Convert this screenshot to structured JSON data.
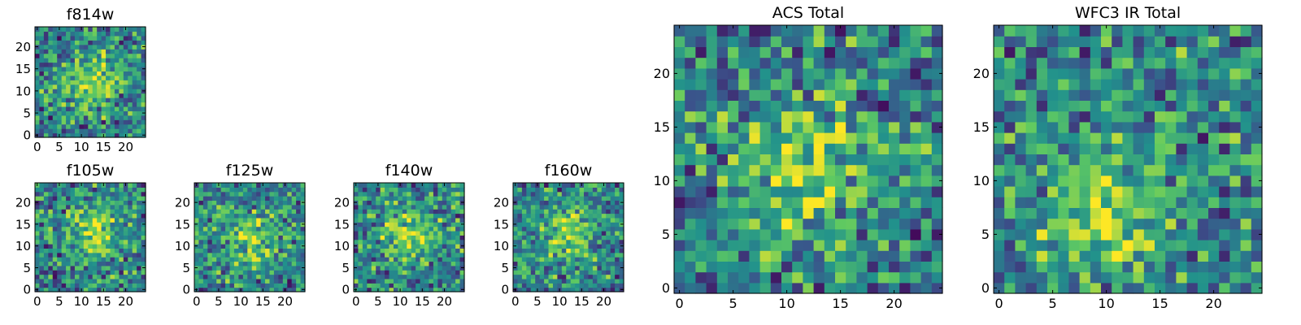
{
  "figure": {
    "colormap": "viridis",
    "colormap_stops": [
      "#440154",
      "#3b528b",
      "#21918c",
      "#5ec962",
      "#fde725"
    ]
  },
  "chart_data": [
    {
      "type": "heatmap",
      "id": "f814w",
      "title": "f814w",
      "size": 25,
      "xticks": [
        0,
        5,
        10,
        15,
        20
      ],
      "yticks": [
        0,
        5,
        10,
        15,
        20
      ],
      "xlim": [
        -0.5,
        24.5
      ],
      "ylim": [
        -0.5,
        24.5
      ],
      "peak": [
        12,
        12
      ],
      "noise_seed": 11
    },
    {
      "type": "heatmap",
      "id": "f105w",
      "title": "f105w",
      "size": 25,
      "xticks": [
        0,
        5,
        10,
        15,
        20
      ],
      "yticks": [
        0,
        5,
        10,
        15,
        20
      ],
      "xlim": [
        -0.5,
        24.5
      ],
      "ylim": [
        -0.5,
        24.5
      ],
      "peak": [
        13,
        13
      ],
      "noise_seed": 23
    },
    {
      "type": "heatmap",
      "id": "f125w",
      "title": "f125w",
      "size": 25,
      "xticks": [
        0,
        5,
        10,
        15,
        20
      ],
      "yticks": [
        0,
        5,
        10,
        15,
        20
      ],
      "xlim": [
        -0.5,
        24.5
      ],
      "ylim": [
        -0.5,
        24.5
      ],
      "peak": [
        12,
        12
      ],
      "noise_seed": 37
    },
    {
      "type": "heatmap",
      "id": "f140w",
      "title": "f140w",
      "size": 25,
      "xticks": [
        0,
        5,
        10,
        15,
        20
      ],
      "yticks": [
        0,
        5,
        10,
        15,
        20
      ],
      "xlim": [
        -0.5,
        24.5
      ],
      "ylim": [
        -0.5,
        24.5
      ],
      "peak": [
        12,
        13
      ],
      "noise_seed": 41
    },
    {
      "type": "heatmap",
      "id": "f160w",
      "title": "f160w",
      "size": 25,
      "xticks": [
        0,
        5,
        10,
        15,
        20
      ],
      "yticks": [
        0,
        5,
        10,
        15,
        20
      ],
      "xlim": [
        -0.5,
        24.5
      ],
      "ylim": [
        -0.5,
        24.5
      ],
      "peak": [
        12,
        13
      ],
      "noise_seed": 53
    },
    {
      "type": "heatmap",
      "id": "acs-total",
      "title": "ACS Total",
      "size": 25,
      "xticks": [
        0,
        5,
        10,
        15,
        20
      ],
      "yticks": [
        0,
        5,
        10,
        15,
        20
      ],
      "xlim": [
        -0.5,
        24.5
      ],
      "ylim": [
        -0.5,
        24.5
      ],
      "peak": [
        12,
        11
      ],
      "noise_seed": 67
    },
    {
      "type": "heatmap",
      "id": "wfc3-ir-total",
      "title": "WFC3 IR Total",
      "size": 25,
      "xticks": [
        0,
        5,
        10,
        15,
        20
      ],
      "yticks": [
        0,
        5,
        10,
        15,
        20
      ],
      "xlim": [
        -0.5,
        24.5
      ],
      "ylim": [
        -0.5,
        24.5
      ],
      "peak": [
        10,
        7
      ],
      "noise_seed": 79
    }
  ]
}
